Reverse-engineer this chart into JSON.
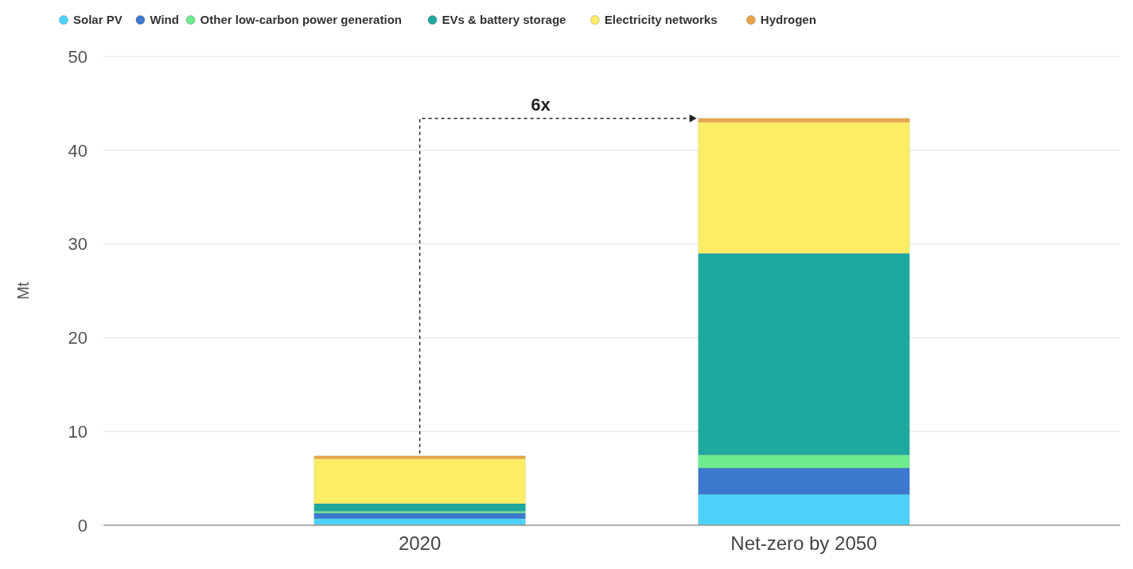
{
  "chart_data": {
    "type": "bar",
    "stacked": true,
    "ylabel": "Mt",
    "categories": [
      "2020",
      "Net-zero by 2050"
    ],
    "series": [
      {
        "name": "Solar PV",
        "color": "#4fd1fb",
        "values": [
          0.7,
          3.3
        ]
      },
      {
        "name": "Wind",
        "color": "#3c78cd",
        "values": [
          0.6,
          2.8
        ]
      },
      {
        "name": "Other low-carbon power generation",
        "color": "#6eea8f",
        "values": [
          0.2,
          1.4
        ]
      },
      {
        "name": "EVs & battery storage",
        "color": "#1fa89d",
        "values": [
          0.8,
          21.5
        ]
      },
      {
        "name": "Electricity networks",
        "color": "#fbed66",
        "values": [
          4.8,
          14.0
        ]
      },
      {
        "name": "Hydrogen",
        "color": "#e8a54c",
        "values": [
          0.3,
          0.4
        ]
      }
    ],
    "ylim": [
      0,
      50
    ],
    "yticks": [
      0,
      10,
      20,
      30,
      40,
      50
    ],
    "grid": "y",
    "legend": "top",
    "annotations": [
      "6x"
    ]
  }
}
